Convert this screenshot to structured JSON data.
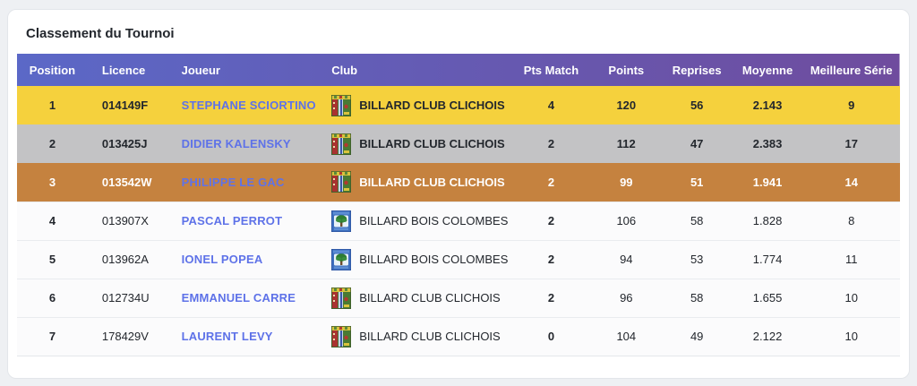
{
  "page": {
    "title": "Classement du Tournoi"
  },
  "colors": {
    "header_gradient_start": "#5b68c7",
    "header_gradient_end": "#6f4c9e",
    "gold_row": "#f5d13d",
    "silver_row": "#c3c3c5",
    "bronze_row": "#c5823f",
    "link_blue": "#5e72e8"
  },
  "table": {
    "columns": [
      {
        "key": "position",
        "label": "Position",
        "align": "center",
        "width": "8%"
      },
      {
        "key": "licence",
        "label": "Licence",
        "align": "left",
        "width": "9%"
      },
      {
        "key": "joueur",
        "label": "Joueur",
        "align": "left",
        "width": "17%"
      },
      {
        "key": "club",
        "label": "Club",
        "align": "left",
        "width": "22%"
      },
      {
        "key": "pts_match",
        "label": "Pts Match",
        "align": "center",
        "width": "9%"
      },
      {
        "key": "points",
        "label": "Points",
        "align": "center",
        "width": "8%"
      },
      {
        "key": "reprises",
        "label": "Reprises",
        "align": "center",
        "width": "8%"
      },
      {
        "key": "moyenne",
        "label": "Moyenne",
        "align": "center",
        "width": "8%"
      },
      {
        "key": "meilleure_serie",
        "label": "Meilleure Série",
        "align": "center",
        "width": "11%"
      }
    ],
    "rows": [
      {
        "position": "1",
        "licence": "014149F",
        "joueur": "STEPHANE SCIORTINO",
        "club": "BILLARD CLUB CLICHOIS",
        "club_logo": "clichois",
        "pts_match": "4",
        "points": "120",
        "reprises": "56",
        "moyenne": "2.143",
        "meilleure_serie": "9",
        "rank_style": "gold"
      },
      {
        "position": "2",
        "licence": "013425J",
        "joueur": "DIDIER KALENSKY",
        "club": "BILLARD CLUB CLICHOIS",
        "club_logo": "clichois",
        "pts_match": "2",
        "points": "112",
        "reprises": "47",
        "moyenne": "2.383",
        "meilleure_serie": "17",
        "rank_style": "silver"
      },
      {
        "position": "3",
        "licence": "013542W",
        "joueur": "PHILIPPE LE GAC",
        "club": "BILLARD CLUB CLICHOIS",
        "club_logo": "clichois",
        "pts_match": "2",
        "points": "99",
        "reprises": "51",
        "moyenne": "1.941",
        "meilleure_serie": "14",
        "rank_style": "bronze"
      },
      {
        "position": "4",
        "licence": "013907X",
        "joueur": "PASCAL PERROT",
        "club": "BILLARD BOIS COLOMBES",
        "club_logo": "colombes",
        "pts_match": "2",
        "points": "106",
        "reprises": "58",
        "moyenne": "1.828",
        "meilleure_serie": "8",
        "rank_style": "default"
      },
      {
        "position": "5",
        "licence": "013962A",
        "joueur": "IONEL POPEA",
        "club": "BILLARD BOIS COLOMBES",
        "club_logo": "colombes",
        "pts_match": "2",
        "points": "94",
        "reprises": "53",
        "moyenne": "1.774",
        "meilleure_serie": "11",
        "rank_style": "default"
      },
      {
        "position": "6",
        "licence": "012734U",
        "joueur": "EMMANUEL CARRE",
        "club": "BILLARD CLUB CLICHOIS",
        "club_logo": "clichois",
        "pts_match": "2",
        "points": "96",
        "reprises": "58",
        "moyenne": "1.655",
        "meilleure_serie": "10",
        "rank_style": "default"
      },
      {
        "position": "7",
        "licence": "178429V",
        "joueur": "LAURENT LEVY",
        "club": "BILLARD CLUB CLICHOIS",
        "club_logo": "clichois",
        "pts_match": "0",
        "points": "104",
        "reprises": "49",
        "moyenne": "2.122",
        "meilleure_serie": "10",
        "rank_style": "default"
      }
    ]
  }
}
